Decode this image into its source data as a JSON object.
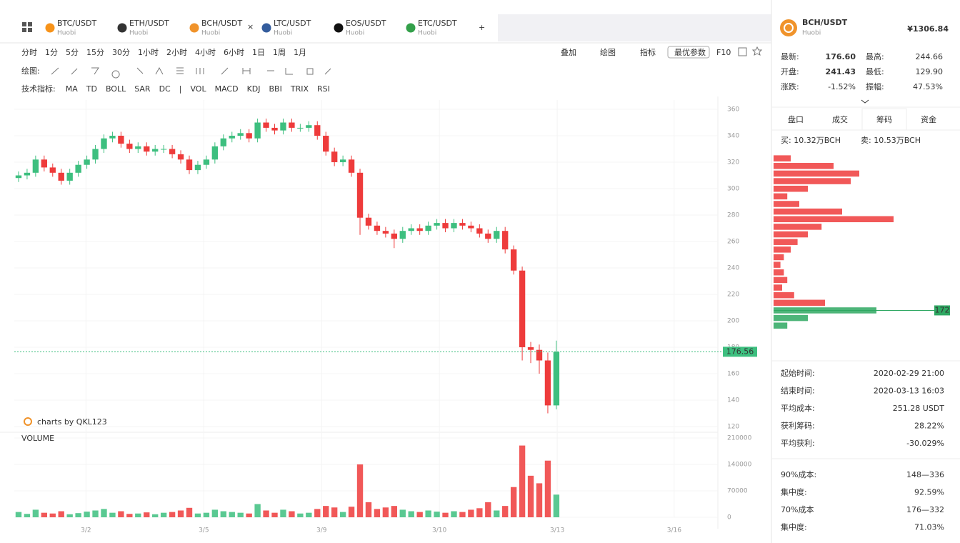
{
  "tabs": [
    {
      "pair": "BTC/USDT",
      "exchange": "Huobi",
      "color": "#f7931a"
    },
    {
      "pair": "ETH/USDT",
      "exchange": "Huobi",
      "color": "#333333"
    },
    {
      "pair": "BCH/USDT",
      "exchange": "Huobi",
      "color": "#f0932b"
    },
    {
      "pair": "LTC/USDT",
      "exchange": "Huobi",
      "color": "#345d9d"
    },
    {
      "pair": "EOS/USDT",
      "exchange": "Huobi",
      "color": "#111111"
    },
    {
      "pair": "ETC/USDT",
      "exchange": "Huobi",
      "color": "#33a04a"
    }
  ],
  "active_tab": 2,
  "close_tab": "×",
  "add_tab": "+",
  "header": {
    "pair": "BCH/USDT",
    "exchange": "Huobi",
    "price": "¥1306.84"
  },
  "intervals": [
    "分时",
    "1分",
    "5分",
    "15分",
    "30分",
    "1小时",
    "2小时",
    "4小时",
    "6小时",
    "1日",
    "1周",
    "1月"
  ],
  "active_interval": 5,
  "tools": [
    "叠加",
    "绘图",
    "指标",
    "最优参数",
    "F10"
  ],
  "draw_label": "绘图:",
  "indicator_label": "技术指标:",
  "indicators": [
    "MA",
    "TD",
    "BOLL",
    "SAR",
    "DC",
    "|",
    "VOL",
    "MACD",
    "KDJ",
    "BBI",
    "TRIX",
    "RSI"
  ],
  "active_indicator": 6,
  "chart_data": {
    "type": "candlestick",
    "watermark": "charts by QKL123",
    "volume_title": "VOLUME",
    "up_color": "#3dbf7f",
    "down_color": "#ee3b3b",
    "xlim": [
      -0.5,
      81.5
    ],
    "xticks": [
      {
        "value": 7.9,
        "label": "3/2"
      },
      {
        "value": 21.7,
        "label": "3/5"
      },
      {
        "value": 35.5,
        "label": "3/9"
      },
      {
        "value": 49.3,
        "label": "3/10"
      },
      {
        "value": 63.1,
        "label": "3/13"
      },
      {
        "value": 76.8,
        "label": "3/16"
      }
    ],
    "ylim": [
      120,
      360
    ],
    "yticks": [
      120,
      140,
      160,
      180,
      200,
      220,
      240,
      260,
      280,
      300,
      320,
      340,
      360
    ],
    "volume_ylim": [
      0,
      210000
    ],
    "volume_ticks": [
      0,
      70000,
      140000,
      210000
    ],
    "open": [
      308,
      310,
      312,
      322,
      316,
      312,
      306,
      312,
      318,
      322,
      330,
      338,
      340,
      334,
      330,
      332,
      328,
      330,
      330,
      326,
      322,
      314,
      318,
      322,
      332,
      338,
      340,
      342,
      338,
      350,
      346,
      344,
      350,
      346,
      346,
      348,
      340,
      328,
      320,
      322,
      312,
      278,
      272,
      268,
      266,
      262,
      268,
      270,
      268,
      272,
      274,
      270,
      274,
      272,
      270,
      266,
      262,
      268,
      254,
      238,
      180,
      178,
      170,
      136
    ],
    "high": [
      313,
      315,
      325,
      325,
      319,
      315,
      315,
      321,
      325,
      333,
      341,
      343,
      343,
      337,
      335,
      335,
      333,
      333,
      333,
      329,
      325,
      321,
      325,
      335,
      341,
      343,
      345,
      345,
      353,
      353,
      349,
      353,
      353,
      349,
      351,
      351,
      343,
      331,
      325,
      325,
      315,
      281,
      275,
      271,
      269,
      271,
      273,
      273,
      275,
      277,
      277,
      277,
      277,
      275,
      273,
      269,
      271,
      271,
      257,
      241,
      184,
      182,
      176,
      185
    ],
    "low": [
      305,
      307,
      309,
      313,
      309,
      303,
      303,
      309,
      315,
      319,
      327,
      335,
      331,
      327,
      327,
      325,
      325,
      327,
      323,
      319,
      311,
      311,
      315,
      319,
      329,
      335,
      337,
      335,
      335,
      343,
      341,
      341,
      343,
      343,
      343,
      337,
      325,
      317,
      317,
      309,
      265,
      269,
      265,
      263,
      255,
      259,
      265,
      265,
      265,
      269,
      267,
      267,
      269,
      267,
      263,
      259,
      259,
      251,
      235,
      170,
      168,
      160,
      130,
      133
    ],
    "close": [
      310,
      312,
      322,
      316,
      312,
      306,
      312,
      318,
      322,
      330,
      338,
      340,
      334,
      330,
      332,
      328,
      330,
      330,
      326,
      322,
      314,
      318,
      322,
      332,
      338,
      340,
      342,
      338,
      350,
      346,
      344,
      350,
      346,
      346,
      348,
      340,
      328,
      320,
      322,
      312,
      278,
      272,
      268,
      266,
      262,
      268,
      270,
      268,
      272,
      274,
      270,
      274,
      272,
      270,
      266,
      262,
      268,
      254,
      238,
      180,
      178,
      170,
      136,
      176.56
    ],
    "volume": [
      14000,
      9000,
      20000,
      12000,
      10000,
      16000,
      8000,
      11000,
      15000,
      18000,
      22000,
      12000,
      16000,
      9000,
      10000,
      13000,
      8000,
      12000,
      14000,
      18000,
      25000,
      10000,
      12000,
      20000,
      16000,
      14000,
      12000,
      10000,
      35000,
      18000,
      12000,
      20000,
      16000,
      10000,
      12000,
      22000,
      30000,
      26000,
      14000,
      28000,
      140000,
      40000,
      22000,
      26000,
      30000,
      20000,
      16000,
      14000,
      18000,
      15000,
      12000,
      16000,
      14000,
      20000,
      24000,
      40000,
      18000,
      30000,
      80000,
      190000,
      110000,
      90000,
      150000,
      60000
    ],
    "chips": {
      "ylim": [
        140,
        340
      ],
      "xlim": [
        0,
        100
      ],
      "peak": 172,
      "above_color": "#ee3b3b",
      "below_color": "#2ea862",
      "prices": [
        156,
        164,
        172,
        180,
        188,
        196,
        204,
        212,
        220,
        228,
        236,
        244,
        252,
        260,
        268,
        276,
        284,
        292,
        300,
        308,
        316,
        324,
        332
      ],
      "values": [
        8,
        20,
        60,
        30,
        12,
        5,
        8,
        6,
        4,
        6,
        10,
        14,
        20,
        28,
        70,
        40,
        15,
        8,
        20,
        45,
        50,
        35,
        10
      ]
    }
  },
  "panel": {
    "quote": [
      {
        "label": "最新:",
        "value": "176.60",
        "color": "#222"
      },
      {
        "label": "最高:",
        "value": "244.66",
        "color": "#2ea862"
      },
      {
        "label": "开盘:",
        "value": "241.43",
        "color": "#222"
      },
      {
        "label": "最低:",
        "value": "129.90",
        "color": "#ee3b3b"
      },
      {
        "label": "涨跌:",
        "value": "-1.52%",
        "color": "#ee3b3b"
      },
      {
        "label": "振幅:",
        "value": "47.53%",
        "color": "#ee3b3b"
      }
    ],
    "tabs": [
      "盘口",
      "成交",
      "筹码",
      "资金"
    ],
    "active_tab": 2,
    "buy": "买: 10.32万BCH",
    "sell": "卖: 10.53万BCH",
    "stats": [
      {
        "label": "起始时间:",
        "value": "2020-02-29 21:00",
        "color": "#222"
      },
      {
        "label": "结束时间:",
        "value": "2020-03-13 16:03",
        "color": "#222"
      },
      {
        "label": "平均成本:",
        "value": "251.28 USDT",
        "color": "#ee3b3b"
      },
      {
        "label": "获利筹码:",
        "value": "28.22%",
        "color": "#222"
      },
      {
        "label": "平均获利:",
        "value": "-30.029%",
        "color": "#ee3b3b"
      }
    ],
    "ranges": [
      {
        "label": "90%成本:",
        "value": "148—336",
        "color": "#222"
      },
      {
        "label": "集中度:",
        "value": "92.59%",
        "color": "#222"
      },
      {
        "label": "70%成本",
        "value": "176—332",
        "color": "#222"
      },
      {
        "label": "集中度:",
        "value": "71.03%",
        "color": "#222"
      }
    ]
  }
}
